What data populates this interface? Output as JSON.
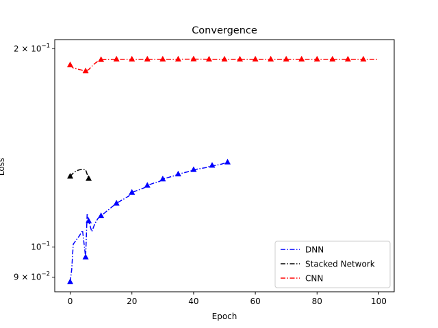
{
  "chart_data": {
    "type": "line",
    "title": "Convergence",
    "xlabel": "Epoch",
    "ylabel": "Loss",
    "xlim": [
      -5,
      105
    ],
    "ylim": [
      0.0855,
      0.2065
    ],
    "yscale": "log",
    "grid": false,
    "legend_position": "lower-right",
    "x_ticks": [
      0,
      20,
      40,
      60,
      80,
      100
    ],
    "x_tick_labels": [
      "0",
      "20",
      "40",
      "60",
      "80",
      "100"
    ],
    "y_ticks": [
      0.09,
      0.1,
      0.2
    ],
    "y_tick_labels": [
      {
        "mantissa": "9",
        "exponent": "-2"
      },
      {
        "mantissa": "10",
        "exponent": "-1"
      },
      {
        "mantissa": "2",
        "exponent": "-1"
      }
    ],
    "series": [
      {
        "name": "DNN",
        "color": "#0000ff",
        "x": [
          0,
          0.5,
          1,
          2,
          3,
          4,
          5,
          5.5,
          6,
          6.5,
          7,
          8,
          9,
          10,
          11,
          12,
          13,
          14,
          15,
          17,
          19,
          20,
          22,
          24,
          25,
          27,
          29,
          30,
          32,
          34,
          35,
          37,
          39,
          40,
          42,
          44,
          45,
          47,
          49,
          51
        ],
        "y": [
          0.0885,
          0.0925,
          0.101,
          0.1025,
          0.104,
          0.106,
          0.0965,
          0.1125,
          0.1095,
          0.1075,
          0.1055,
          0.1085,
          0.1105,
          0.1115,
          0.1125,
          0.1135,
          0.1145,
          0.1155,
          0.1165,
          0.118,
          0.1195,
          0.121,
          0.122,
          0.123,
          0.124,
          0.125,
          0.1258,
          0.1268,
          0.1276,
          0.1284,
          0.129,
          0.1297,
          0.1304,
          0.131,
          0.1315,
          0.132,
          0.1325,
          0.133,
          0.1336,
          0.1345
        ],
        "marker_x": [
          0,
          5,
          6,
          10,
          15,
          20,
          25,
          30,
          35,
          40,
          46,
          51
        ],
        "marker_y": [
          0.0885,
          0.0965,
          0.1095,
          0.1115,
          0.1165,
          0.121,
          0.124,
          0.1268,
          0.129,
          0.131,
          0.133,
          0.1345
        ]
      },
      {
        "name": "Stacked Network",
        "color": "#000000",
        "x": [
          0,
          1,
          2,
          3,
          4,
          5,
          6
        ],
        "y": [
          0.128,
          0.1295,
          0.1305,
          0.131,
          0.1312,
          0.131,
          0.127
        ],
        "marker_x": [
          0,
          6
        ],
        "marker_y": [
          0.128,
          0.127
        ]
      },
      {
        "name": "CNN",
        "color": "#ff0000",
        "x": [
          0,
          1,
          2,
          3,
          4,
          5,
          6,
          7,
          8,
          9,
          10,
          15,
          20,
          25,
          30,
          35,
          40,
          45,
          50,
          55,
          60,
          65,
          70,
          75,
          80,
          85,
          90,
          95,
          100
        ],
        "y": [
          0.189,
          0.187,
          0.1865,
          0.186,
          0.1855,
          0.185,
          0.186,
          0.188,
          0.19,
          0.1915,
          0.1925,
          0.1928,
          0.1928,
          0.1928,
          0.1928,
          0.1928,
          0.1929,
          0.1928,
          0.1928,
          0.1928,
          0.1928,
          0.1928,
          0.1928,
          0.1928,
          0.1928,
          0.1928,
          0.1928,
          0.1928,
          0.1928
        ],
        "marker_x": [
          0,
          5,
          10,
          15,
          20,
          25,
          30,
          35,
          40,
          45,
          50,
          55,
          60,
          65,
          70,
          75,
          80,
          85,
          90,
          95
        ],
        "marker_y": [
          0.189,
          0.185,
          0.1925,
          0.1928,
          0.1928,
          0.1928,
          0.1928,
          0.1928,
          0.1929,
          0.1928,
          0.1928,
          0.1928,
          0.1928,
          0.1928,
          0.1928,
          0.1928,
          0.1928,
          0.1928,
          0.1928,
          0.1928
        ]
      }
    ]
  }
}
